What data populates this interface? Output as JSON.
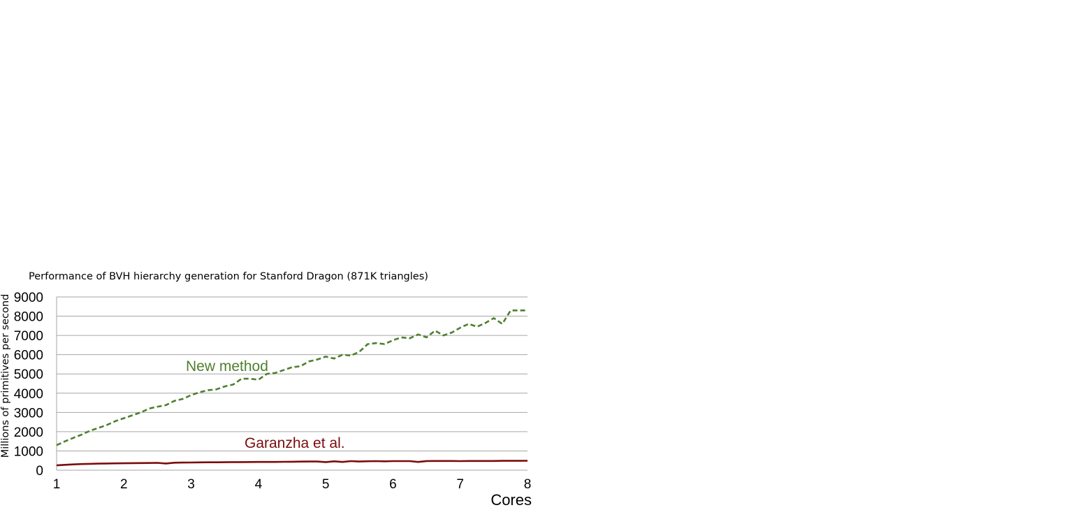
{
  "chart_data": {
    "type": "line",
    "title": "Performance of BVH hierarchy generation for Stanford Dragon (871K triangles)",
    "xlabel": "Cores",
    "ylabel": "Millions of primitives per second",
    "xlim": [
      1,
      8
    ],
    "ylim": [
      0,
      9000
    ],
    "x_ticks": [
      "1",
      "2",
      "3",
      "4",
      "5",
      "6",
      "7",
      "8"
    ],
    "y_ticks": [
      "0",
      "1000",
      "2000",
      "3000",
      "4000",
      "5000",
      "6000",
      "7000",
      "8000",
      "9000"
    ],
    "grid": true,
    "legend": "none",
    "series": [
      {
        "name": "New method",
        "color": "#4f7f2e",
        "style": "dashed",
        "x": [
          1.0,
          1.125,
          1.25,
          1.375,
          1.5,
          1.625,
          1.75,
          1.875,
          2.0,
          2.125,
          2.25,
          2.375,
          2.5,
          2.625,
          2.75,
          2.875,
          3.0,
          3.125,
          3.25,
          3.375,
          3.5,
          3.625,
          3.75,
          3.875,
          4.0,
          4.125,
          4.25,
          4.375,
          4.5,
          4.625,
          4.75,
          4.875,
          5.0,
          5.125,
          5.25,
          5.375,
          5.5,
          5.625,
          5.75,
          5.875,
          6.0,
          6.125,
          6.25,
          6.375,
          6.5,
          6.625,
          6.75,
          6.875,
          7.0,
          7.125,
          7.25,
          7.375,
          7.5,
          7.625,
          7.75,
          7.875,
          8.0
        ],
        "values": [
          1300,
          1500,
          1680,
          1850,
          2050,
          2200,
          2350,
          2550,
          2700,
          2850,
          3000,
          3200,
          3300,
          3380,
          3600,
          3700,
          3900,
          4050,
          4150,
          4200,
          4350,
          4450,
          4750,
          4750,
          4700,
          5000,
          5050,
          5200,
          5350,
          5400,
          5650,
          5750,
          5900,
          5800,
          6000,
          5950,
          6150,
          6550,
          6600,
          6550,
          6750,
          6900,
          6850,
          7050,
          6900,
          7250,
          7000,
          7150,
          7400,
          7600,
          7450,
          7650,
          7900,
          7600,
          8300,
          8300,
          8300
        ]
      },
      {
        "name": "Garanzha et al.",
        "color": "#7b0c0c",
        "style": "solid",
        "x": [
          1.0,
          1.125,
          1.25,
          1.375,
          1.5,
          1.625,
          1.75,
          1.875,
          2.0,
          2.125,
          2.25,
          2.375,
          2.5,
          2.625,
          2.75,
          2.875,
          3.0,
          3.125,
          3.25,
          3.375,
          3.5,
          3.625,
          3.75,
          3.875,
          4.0,
          4.125,
          4.25,
          4.375,
          4.5,
          4.625,
          4.75,
          4.875,
          5.0,
          5.125,
          5.25,
          5.375,
          5.5,
          5.625,
          5.75,
          5.875,
          6.0,
          6.125,
          6.25,
          6.375,
          6.5,
          6.625,
          6.75,
          6.875,
          7.0,
          7.125,
          7.25,
          7.375,
          7.5,
          7.625,
          7.75,
          7.875,
          8.0
        ],
        "values": [
          250,
          280,
          300,
          320,
          330,
          340,
          350,
          355,
          360,
          365,
          370,
          375,
          380,
          350,
          390,
          395,
          400,
          405,
          410,
          410,
          415,
          420,
          420,
          425,
          430,
          430,
          430,
          435,
          440,
          445,
          450,
          450,
          420,
          460,
          430,
          470,
          450,
          465,
          470,
          460,
          470,
          470,
          470,
          430,
          475,
          480,
          480,
          480,
          470,
          480,
          480,
          480,
          480,
          485,
          485,
          485,
          490
        ]
      }
    ],
    "annotations": [
      {
        "text": "New method",
        "series": 0
      },
      {
        "text": "Garanzha et al.",
        "series": 1
      }
    ]
  }
}
